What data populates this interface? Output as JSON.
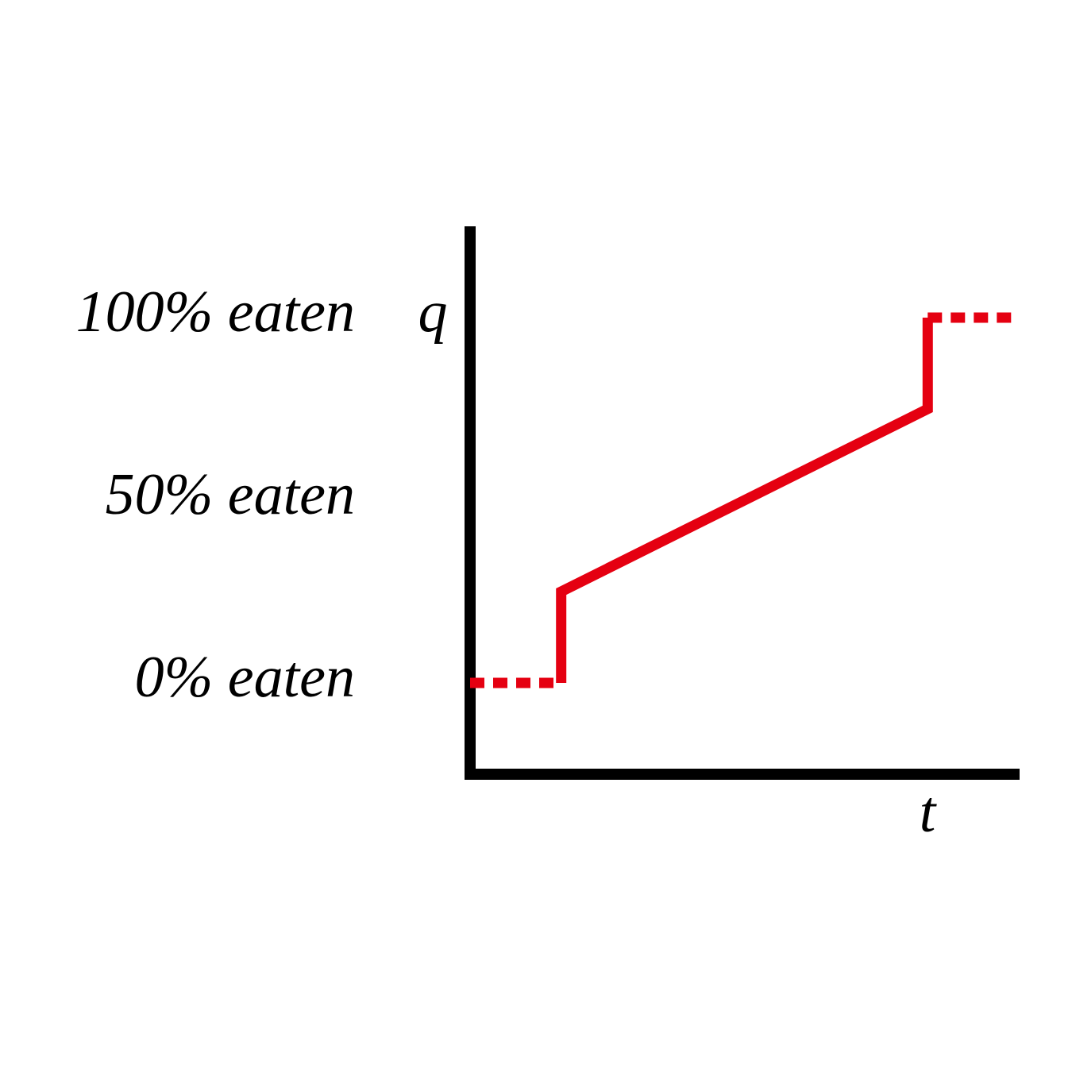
{
  "chart_data": {
    "type": "line",
    "y_label": "q",
    "x_label": "t",
    "xlim": [
      0,
      100
    ],
    "ylim": [
      -25,
      125
    ],
    "yticks": [
      {
        "value": 0,
        "label": "0% eaten"
      },
      {
        "value": 50,
        "label": "50% eaten"
      },
      {
        "value": 100,
        "label": "100% eaten"
      }
    ],
    "grid": false,
    "series": [
      {
        "color": "#e50011",
        "style": "dotted",
        "x": [
          0,
          16.6
        ],
        "values": [
          0,
          0
        ]
      },
      {
        "color": "#e50011",
        "style": "solid",
        "x": [
          16.6,
          16.6,
          83.4,
          83.4
        ],
        "values": [
          0,
          25,
          75,
          100
        ]
      },
      {
        "color": "#e50011",
        "style": "dotted",
        "x": [
          83.4,
          100
        ],
        "values": [
          100,
          100
        ]
      }
    ]
  }
}
